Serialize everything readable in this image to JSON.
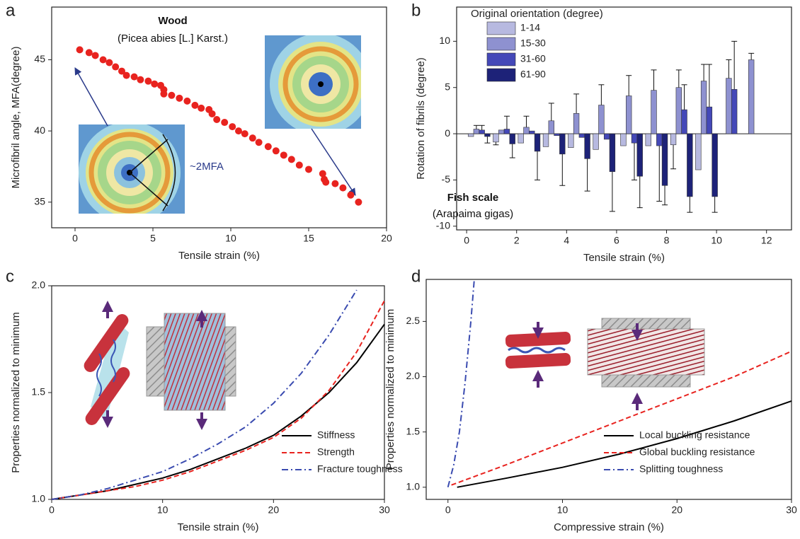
{
  "chart_data": [
    {
      "type": "scatter",
      "label": "a",
      "x": [
        0.3,
        0.9,
        1.3,
        1.8,
        2.2,
        2.6,
        3.0,
        3.3,
        3.8,
        4.2,
        4.7,
        5.1,
        5.5,
        5.7,
        5.7,
        6.2,
        6.7,
        7.2,
        7.7,
        8.1,
        8.6,
        8.8,
        9.1,
        9.6,
        10.1,
        10.5,
        10.9,
        11.4,
        11.8,
        12.4,
        12.9,
        13.4,
        13.9,
        14.4,
        15.0,
        15.9,
        16.0,
        16.1,
        16.7,
        17.2,
        17.7,
        18.2
      ],
      "values": [
        45.7,
        45.5,
        45.3,
        45.0,
        44.8,
        44.5,
        44.2,
        43.9,
        43.8,
        43.6,
        43.5,
        43.3,
        43.2,
        42.9,
        42.6,
        42.5,
        42.3,
        42.1,
        41.8,
        41.6,
        41.5,
        41.2,
        40.8,
        40.6,
        40.3,
        40.0,
        39.8,
        39.5,
        39.2,
        38.9,
        38.6,
        38.3,
        38.0,
        37.6,
        37.3,
        37.0,
        36.6,
        36.4,
        36.3,
        36.0,
        35.5,
        35.0
      ],
      "color": "#e8231f",
      "xlabel": "Tensile strain (%)",
      "ylabel": "Microfibril angle, MFA(degree)",
      "xlim": [
        -1.5,
        20
      ],
      "ylim": [
        33.2,
        48.7
      ],
      "xticks": [
        0,
        5,
        10,
        15,
        20
      ],
      "yticks": [
        35,
        40,
        45
      ],
      "annotations": [
        "Wood",
        "(Picea abies [L.] Karst.)",
        "~2MFA"
      ]
    },
    {
      "type": "bar",
      "label": "b",
      "x": [
        0.5,
        1.5,
        2.5,
        3.5,
        4.5,
        5.5,
        6.6,
        7.6,
        8.6,
        9.6,
        10.6,
        11.5
      ],
      "series": [
        {
          "name": "1-14",
          "color": "#b7b9e0",
          "values": [
            -0.3,
            -0.9,
            -1.0,
            -1.4,
            -1.5,
            -1.7,
            -1.3,
            -1.3,
            -1.2,
            -3.9,
            null,
            null
          ],
          "errors": [
            null,
            0.3,
            null,
            null,
            null,
            null,
            null,
            null,
            2.6,
            null,
            null,
            null
          ]
        },
        {
          "name": "15-30",
          "color": "#8e91d0",
          "values": [
            0.5,
            0.4,
            0.7,
            1.4,
            2.2,
            3.1,
            4.1,
            4.7,
            5.0,
            5.7,
            6.0,
            8.0
          ],
          "errors": [
            0.4,
            null,
            1.2,
            1.9,
            2.1,
            2.2,
            2.2,
            2.2,
            1.9,
            1.8,
            2.0,
            0.7
          ]
        },
        {
          "name": "31-60",
          "color": "#4448b8",
          "values": [
            0.4,
            0.5,
            0.3,
            -0.2,
            -0.4,
            -0.6,
            -1.0,
            -1.3,
            2.6,
            2.9,
            4.8,
            null
          ],
          "errors": [
            0.5,
            1.4,
            null,
            null,
            null,
            null,
            4.0,
            6.0,
            2.7,
            4.6,
            5.2,
            null
          ]
        },
        {
          "name": "61-90",
          "color": "#1d2278",
          "values": [
            -0.3,
            -1.1,
            -1.9,
            -2.2,
            -2.7,
            -4.1,
            -4.6,
            -5.6,
            -6.8,
            -6.8,
            null,
            null
          ],
          "errors": [
            0.7,
            1.5,
            3.1,
            3.4,
            3.5,
            4.3,
            3.4,
            2.1,
            1.7,
            1.7,
            null,
            null
          ]
        }
      ],
      "legend_title": "Original orientation (degree)",
      "legend": "upper left",
      "xlabel": "Tensile strain (%)",
      "ylabel": "Rotation of fibrils (degree)",
      "xlim": [
        -0.4,
        13
      ],
      "ylim": [
        -10.4,
        13.7
      ],
      "xticks": [
        0,
        2,
        4,
        6,
        8,
        10,
        12
      ],
      "yticks": [
        -10,
        -5,
        0,
        5,
        10
      ],
      "annotations": [
        "Fish scale",
        "(Arapaima gigas)"
      ]
    },
    {
      "type": "line",
      "label": "c",
      "x": [
        0,
        2.5,
        5,
        7.5,
        10,
        12.5,
        15,
        17.5,
        20,
        22.5,
        25,
        27.5,
        30
      ],
      "series": [
        {
          "name": "Stiffness",
          "color": "#000000",
          "dash": "solid",
          "values": [
            1.0,
            1.02,
            1.04,
            1.07,
            1.1,
            1.14,
            1.19,
            1.24,
            1.3,
            1.39,
            1.5,
            1.64,
            1.82
          ]
        },
        {
          "name": "Strength",
          "color": "#e8231f",
          "dash": "dashed",
          "values": [
            1.0,
            1.02,
            1.04,
            1.06,
            1.09,
            1.13,
            1.18,
            1.23,
            1.29,
            1.38,
            1.51,
            1.69,
            1.93
          ]
        },
        {
          "name": "Fracture toughness",
          "color": "#3a4bb0",
          "dash": "dashdot",
          "values": [
            1.0,
            1.02,
            1.05,
            1.09,
            1.13,
            1.19,
            1.26,
            1.34,
            1.45,
            1.59,
            1.77,
            1.98,
            null
          ]
        }
      ],
      "legend": "lower right",
      "xlabel": "Tensile strain (%)",
      "ylabel": "Properties normalized to minimum",
      "xlim": [
        0,
        30
      ],
      "ylim": [
        1,
        2
      ],
      "xticks": [
        0,
        10,
        20,
        30
      ],
      "yticks": [
        {
          "value": 1,
          "label": "1.0"
        },
        {
          "value": 1.5,
          "label": "1.5"
        },
        {
          "value": 2,
          "label": "2.0"
        }
      ]
    },
    {
      "type": "line",
      "label": "d",
      "series": [
        {
          "name": "Local buckling resistance",
          "color": "#000000",
          "dash": "solid",
          "x": [
            0.8,
            5,
            10,
            15,
            20,
            25,
            30
          ],
          "values": [
            1.0,
            1.08,
            1.18,
            1.3,
            1.44,
            1.6,
            1.78
          ]
        },
        {
          "name": "Global buckling resistance",
          "color": "#e8231f",
          "dash": "dashed",
          "x": [
            0.3,
            5,
            10,
            15,
            20,
            25,
            30
          ],
          "values": [
            1.02,
            1.2,
            1.4,
            1.6,
            1.8,
            2.0,
            2.23
          ]
        },
        {
          "name": "Splitting toughness",
          "color": "#3a4bb0",
          "dash": "dashdot",
          "x": [
            0,
            0.5,
            1,
            1.5,
            2,
            2.3
          ],
          "values": [
            1.0,
            1.2,
            1.5,
            1.95,
            2.5,
            2.88
          ]
        }
      ],
      "legend": "lower right",
      "xlabel": "Compressive strain (%)",
      "ylabel": "Properties normalized to minimum",
      "xlim": [
        -1.9,
        30
      ],
      "ylim": [
        0.89,
        2.88
      ],
      "xticks": [
        0,
        10,
        20,
        30
      ],
      "yticks": [
        {
          "value": 1,
          "label": "1.0"
        },
        {
          "value": 1.5,
          "label": "1.5"
        },
        {
          "value": 2,
          "label": "2.0"
        },
        {
          "value": 2.5,
          "label": "2.5"
        }
      ]
    }
  ]
}
